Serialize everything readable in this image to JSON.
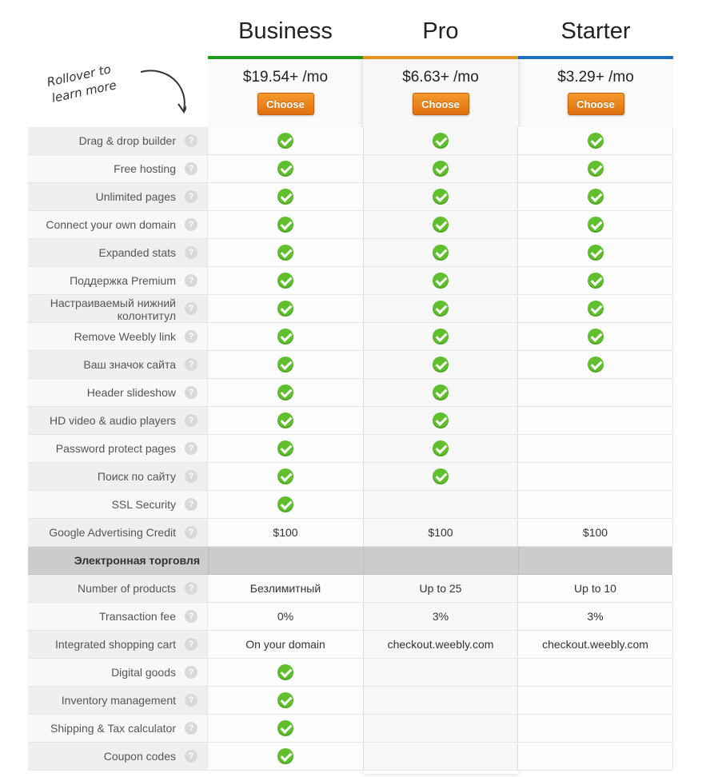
{
  "plans": [
    {
      "name": "Business",
      "price": "$19.54+ /mo",
      "button": "Choose",
      "accent": "#1e9a1e"
    },
    {
      "name": "Pro",
      "price": "$6.63+ /mo",
      "button": "Choose",
      "accent": "#f29a24"
    },
    {
      "name": "Starter",
      "price": "$3.29+ /mo",
      "button": "Choose",
      "accent": "#1f6fc2"
    }
  ],
  "hint": {
    "line1": "Rollover to",
    "line2": "learn more"
  },
  "help_glyph": "?",
  "features": [
    {
      "label": "Drag & drop builder",
      "values": [
        "check",
        "check",
        "check"
      ]
    },
    {
      "label": "Free hosting",
      "values": [
        "check",
        "check",
        "check"
      ]
    },
    {
      "label": "Unlimited pages",
      "values": [
        "check",
        "check",
        "check"
      ]
    },
    {
      "label": "Connect your own domain",
      "values": [
        "check",
        "check",
        "check"
      ]
    },
    {
      "label": "Expanded stats",
      "values": [
        "check",
        "check",
        "check"
      ]
    },
    {
      "label": "Поддержка Premium",
      "values": [
        "check",
        "check",
        "check"
      ]
    },
    {
      "label": "Настраиваемый нижний колонтитул",
      "values": [
        "check",
        "check",
        "check"
      ]
    },
    {
      "label": "Remove Weebly link",
      "values": [
        "check",
        "check",
        "check"
      ]
    },
    {
      "label": "Ваш значок сайта",
      "values": [
        "check",
        "check",
        "check"
      ]
    },
    {
      "label": "Header slideshow",
      "values": [
        "check",
        "check",
        ""
      ]
    },
    {
      "label": "HD video & audio players",
      "values": [
        "check",
        "check",
        ""
      ]
    },
    {
      "label": "Password protect pages",
      "values": [
        "check",
        "check",
        ""
      ]
    },
    {
      "label": "Поиск по сайту",
      "values": [
        "check",
        "check",
        ""
      ]
    },
    {
      "label": "SSL Security",
      "values": [
        "check",
        "",
        ""
      ]
    },
    {
      "label": "Google Advertising Credit",
      "values": [
        "$100",
        "$100",
        "$100"
      ]
    }
  ],
  "ecommerce": {
    "title": "Электронная торговля",
    "features": [
      {
        "label": "Number of products",
        "values": [
          "Безлимитный",
          "Up to 25",
          "Up to 10"
        ]
      },
      {
        "label": "Transaction fee",
        "values": [
          "0%",
          "3%",
          "3%"
        ]
      },
      {
        "label": "Integrated shopping cart",
        "values": [
          "On your domain",
          "checkout.weebly.com",
          "checkout.weebly.com"
        ]
      },
      {
        "label": "Digital goods",
        "values": [
          "check",
          "",
          ""
        ]
      },
      {
        "label": "Inventory management",
        "values": [
          "check",
          "",
          ""
        ]
      },
      {
        "label": "Shipping & Tax calculator",
        "values": [
          "check",
          "",
          ""
        ]
      },
      {
        "label": "Coupon codes",
        "values": [
          "check",
          "",
          ""
        ]
      }
    ]
  },
  "colors": {
    "check": "#5fbf2c",
    "button": "#ee8418"
  }
}
